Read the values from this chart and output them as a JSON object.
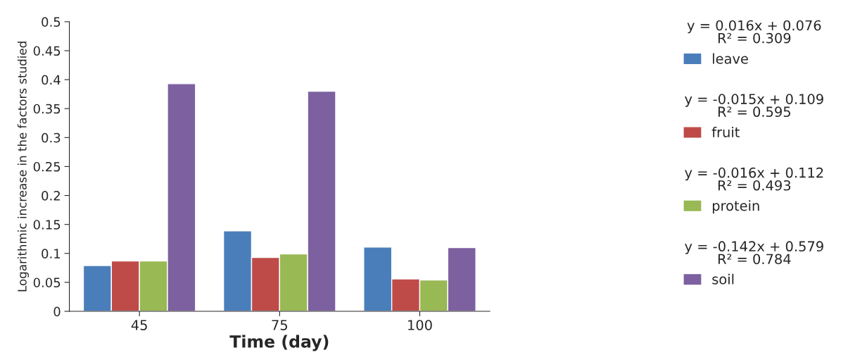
{
  "chart_data": {
    "type": "bar",
    "xlabel": "Time (day)",
    "ylabel": "Logarithmic increase in the factors studied",
    "categories": [
      "45",
      "75",
      "100"
    ],
    "series": [
      {
        "name": "leave",
        "color": "#4a7ebb",
        "values": [
          0.079,
          0.139,
          0.111
        ]
      },
      {
        "name": "fruit",
        "color": "#be4b48",
        "values": [
          0.087,
          0.093,
          0.056
        ]
      },
      {
        "name": "protein",
        "color": "#98b954",
        "values": [
          0.087,
          0.099,
          0.054
        ]
      },
      {
        "name": "soil",
        "color": "#7d60a0",
        "values": [
          0.393,
          0.38,
          0.11
        ]
      }
    ],
    "annotations": [
      "y = 0.016x + 0.076\nR² = 0.309",
      "y = -0.015x + 0.109\nR² = 0.595",
      "y = -0.016x + 0.112\nR² = 0.493",
      "y = -0.142x + 0.579\nR² = 0.784"
    ],
    "ylim": [
      0,
      0.5
    ],
    "yticks": [
      0,
      0.05,
      0.1,
      0.15,
      0.2,
      0.25,
      0.3,
      0.35,
      0.4,
      0.45,
      0.5
    ],
    "grid": false,
    "legend": "right"
  }
}
